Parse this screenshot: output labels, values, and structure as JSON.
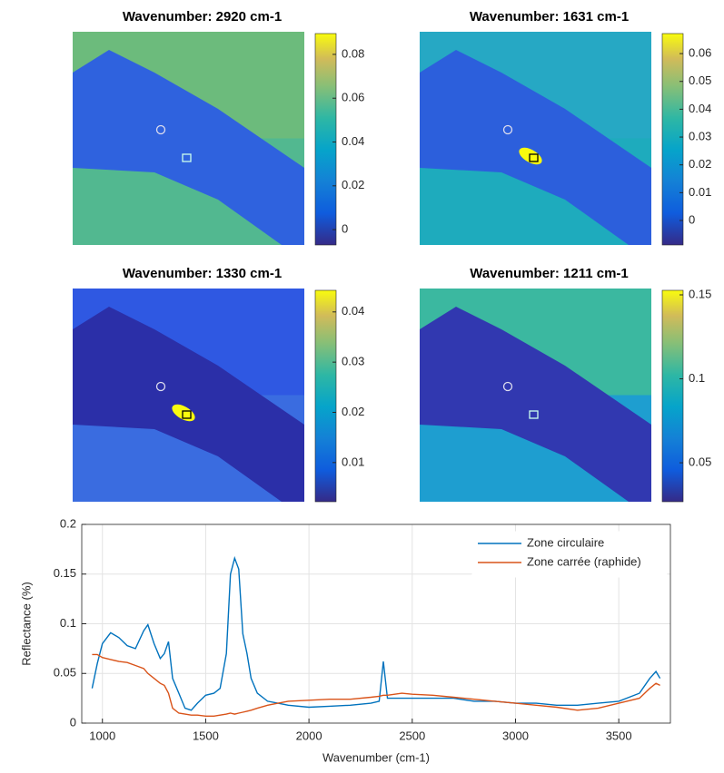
{
  "chart_data": [
    {
      "type": "heatmap",
      "title": "Wavenumber: 2920 cm-1",
      "clim": [
        -0.007,
        0.0895
      ],
      "cticks": [
        0,
        0.02,
        0.04,
        0.06,
        0.08
      ]
    },
    {
      "type": "heatmap",
      "title": "Wavenumber: 1631 cm-1",
      "clim": [
        -0.0088,
        0.0672
      ],
      "cticks": [
        0,
        0.01,
        0.02,
        0.03,
        0.04,
        0.05,
        0.06
      ]
    },
    {
      "type": "heatmap",
      "title": "Wavenumber: 1330 cm-1",
      "clim": [
        0.0022,
        0.0443
      ],
      "cticks": [
        0.01,
        0.02,
        0.03,
        0.04
      ]
    },
    {
      "type": "heatmap",
      "title": "Wavenumber: 1211 cm-1",
      "clim": [
        0.0268,
        0.1527
      ],
      "cticks": [
        0.05,
        0.1,
        0.15
      ]
    },
    {
      "type": "line",
      "xlabel": "Wavenumber (cm-1)",
      "ylabel": "Reflectance (%)",
      "x": [
        950,
        975,
        1000,
        1040,
        1080,
        1120,
        1160,
        1200,
        1220,
        1250,
        1280,
        1300,
        1320,
        1340,
        1370,
        1400,
        1430,
        1460,
        1500,
        1540,
        1570,
        1600,
        1620,
        1640,
        1660,
        1680,
        1700,
        1720,
        1750,
        1800,
        1850,
        1900,
        2000,
        2100,
        2200,
        2300,
        2340,
        2360,
        2380,
        2450,
        2500,
        2600,
        2700,
        2800,
        2900,
        3000,
        3100,
        3200,
        3300,
        3400,
        3500,
        3600,
        3650,
        3680,
        3700
      ],
      "series": [
        {
          "name": "Zone circulaire",
          "color": "#0072bd",
          "values": [
            0.035,
            0.06,
            0.08,
            0.091,
            0.086,
            0.078,
            0.075,
            0.093,
            0.099,
            0.08,
            0.065,
            0.07,
            0.082,
            0.045,
            0.03,
            0.015,
            0.013,
            0.02,
            0.028,
            0.03,
            0.035,
            0.07,
            0.15,
            0.166,
            0.155,
            0.09,
            0.07,
            0.045,
            0.03,
            0.022,
            0.02,
            0.018,
            0.016,
            0.017,
            0.018,
            0.02,
            0.022,
            0.062,
            0.025,
            0.025,
            0.025,
            0.025,
            0.025,
            0.022,
            0.022,
            0.02,
            0.02,
            0.018,
            0.018,
            0.02,
            0.022,
            0.03,
            0.045,
            0.052,
            0.045
          ]
        },
        {
          "name": "Zone carrée (raphide)",
          "color": "#d95319",
          "values": [
            0.069,
            0.069,
            0.066,
            0.064,
            0.062,
            0.061,
            0.058,
            0.055,
            0.05,
            0.045,
            0.04,
            0.038,
            0.03,
            0.015,
            0.01,
            0.009,
            0.008,
            0.008,
            0.007,
            0.007,
            0.008,
            0.009,
            0.01,
            0.009,
            0.01,
            0.011,
            0.012,
            0.013,
            0.015,
            0.018,
            0.02,
            0.022,
            0.023,
            0.024,
            0.024,
            0.026,
            0.027,
            0.028,
            0.028,
            0.03,
            0.029,
            0.028,
            0.026,
            0.024,
            0.022,
            0.02,
            0.018,
            0.016,
            0.013,
            0.015,
            0.02,
            0.025,
            0.035,
            0.04,
            0.038
          ]
        }
      ],
      "xlim": [
        900,
        3750
      ],
      "xticks": [
        1000,
        1500,
        2000,
        2500,
        3000,
        3500
      ],
      "ylim": [
        0,
        0.2
      ],
      "yticks": [
        0,
        0.05,
        0.1,
        0.15,
        0.2
      ],
      "grid": true,
      "legend": "northeast"
    }
  ]
}
